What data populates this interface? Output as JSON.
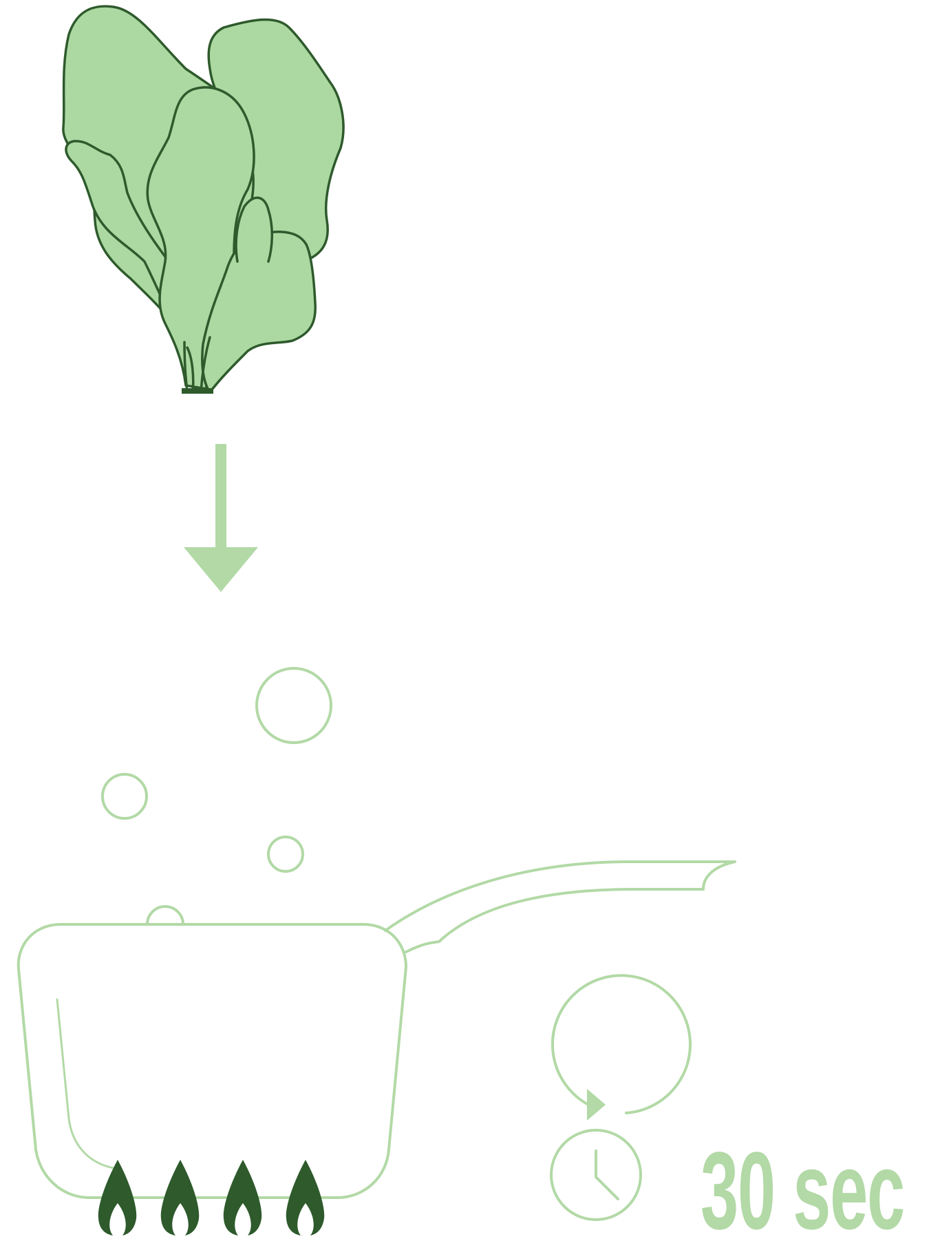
{
  "timer": {
    "label": "30 sec",
    "icon": "stopwatch-icon"
  },
  "illustration": {
    "ingredient_icon": "spinach-icon",
    "direction_icon": "arrow-down-icon",
    "vessel_icon": "saucepan-icon",
    "heat_icon": "flame-icon",
    "flame_count": 4,
    "bubble_icon": "bubble-icon"
  },
  "colors": {
    "light_green": "#b2d9a6",
    "leaf_fill": "#acd8a2",
    "dark_green": "#2e5a2c"
  }
}
